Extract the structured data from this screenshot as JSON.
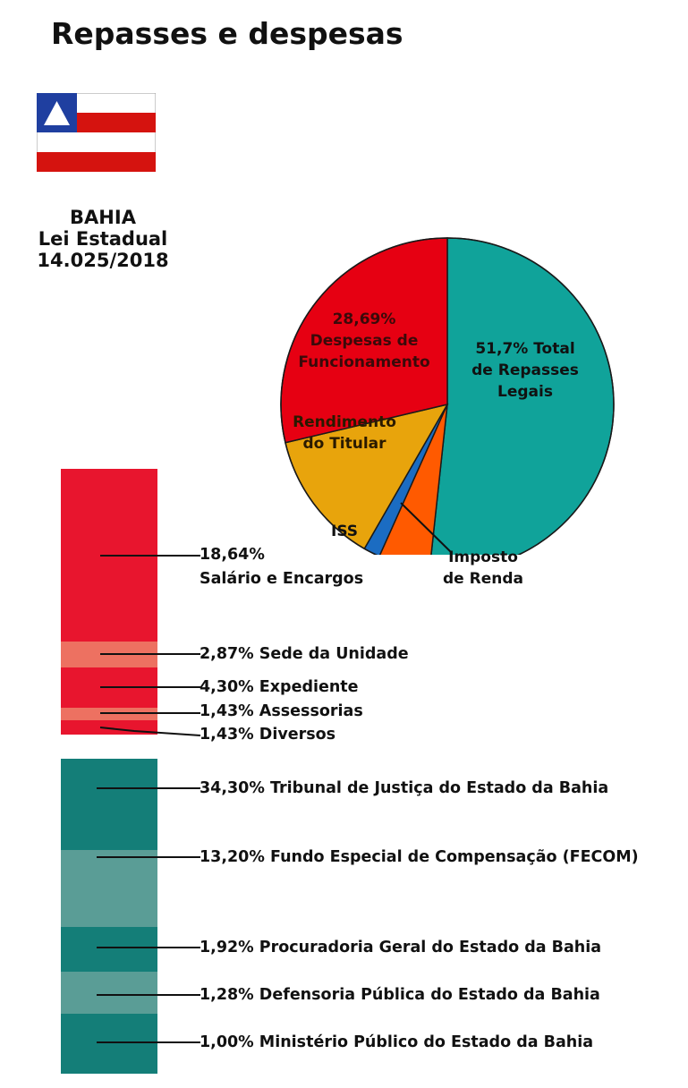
{
  "title": "Repasses e despesas",
  "law": {
    "state": "BAHIA",
    "line1": "Lei Estadual",
    "line2": "14.025/2018"
  },
  "colors": {
    "red": "#e60012",
    "teal": "#10a39a",
    "gold": "#e8a40c",
    "orange": "#ff5a00",
    "blue": "#1b6cc2",
    "bar_red": "#e8152e",
    "bar_red_light": "#ed7161",
    "bar_teal": "#147e78",
    "bar_teal_light": "#5a9d96"
  },
  "chart_data": [
    {
      "type": "pie",
      "slices": [
        {
          "label": "51,7% Total de Repasses Legais",
          "value": 51.7,
          "color": "#10a39a"
        },
        {
          "label": "Imposto de Renda",
          "value": 5.0,
          "color": "#ff5a00"
        },
        {
          "label": "ISS",
          "value": 1.6,
          "color": "#1b6cc2"
        },
        {
          "label": "Rendimento do Titular",
          "value": 13.0,
          "color": "#e8a40c"
        },
        {
          "label": "28,69% Despesas de Funcionamento",
          "value": 28.69,
          "color": "#e60012"
        }
      ],
      "labels": {
        "repasses": [
          "51,7% Total",
          "de Repasses",
          "Legais"
        ],
        "despesas": [
          "28,69%",
          "Despesas de",
          "Funcionamento"
        ],
        "rendimento": [
          "Rendimento",
          "do Titular"
        ],
        "iss": "ISS",
        "imposto": [
          "Imposto",
          "de Renda"
        ]
      }
    },
    {
      "type": "bar",
      "stacked": true,
      "group": "Despesas de Funcionamento",
      "categories": [
        "Salário e Encargos",
        "Sede da Unidade",
        "Expediente",
        "Assessorias",
        "Diversos"
      ],
      "values": [
        18.64,
        2.87,
        4.3,
        1.43,
        1.43
      ],
      "labels": [
        "18,64%",
        "Salário e Encargos",
        "2,87% Sede da Unidade",
        "4,30% Expediente",
        "1,43% Assessorias",
        "1,43% Diversos"
      ]
    },
    {
      "type": "bar",
      "stacked": true,
      "group": "Total de Repasses Legais",
      "categories": [
        "Tribunal de Justiça do Estado da Bahia",
        "Fundo Especial de Compensação (FECOM)",
        "Procuradoria Geral do Estado da Bahia",
        "Defensoria Pública do Estado da Bahia",
        "Ministério Público do Estado da Bahia"
      ],
      "values": [
        34.3,
        13.2,
        1.92,
        1.28,
        1.0
      ],
      "labels": [
        "34,30% Tribunal de Justiça do Estado da Bahia",
        "13,20% Fundo Especial de Compensação (FECOM)",
        "1,92% Procuradoria Geral do Estado da Bahia",
        "1,28% Defensoria Pública do Estado da Bahia",
        "1,00% Ministério Público do Estado da Bahia"
      ]
    }
  ]
}
